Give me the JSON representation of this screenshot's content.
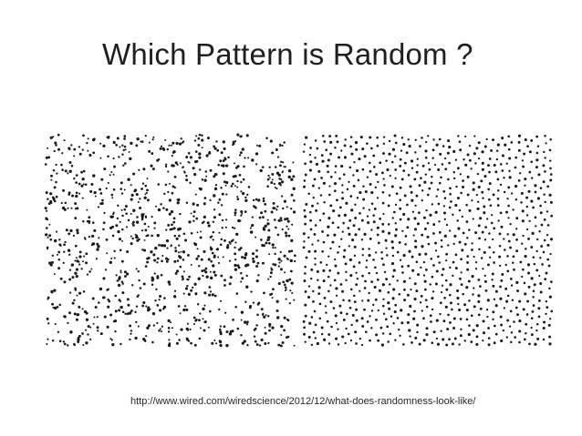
{
  "slide": {
    "title": "Which Pattern is Random ?",
    "source_url": "http://www.wired.com/wiredscience/2012/12/what-does-randomness-look-like/"
  },
  "panels": [
    {
      "name": "left-dot-pattern",
      "distribution": "clustered",
      "dot_color": "#1a1a1a"
    },
    {
      "name": "right-dot-pattern",
      "distribution": "evenly-spaced",
      "dot_color": "#1a1a1a"
    }
  ]
}
